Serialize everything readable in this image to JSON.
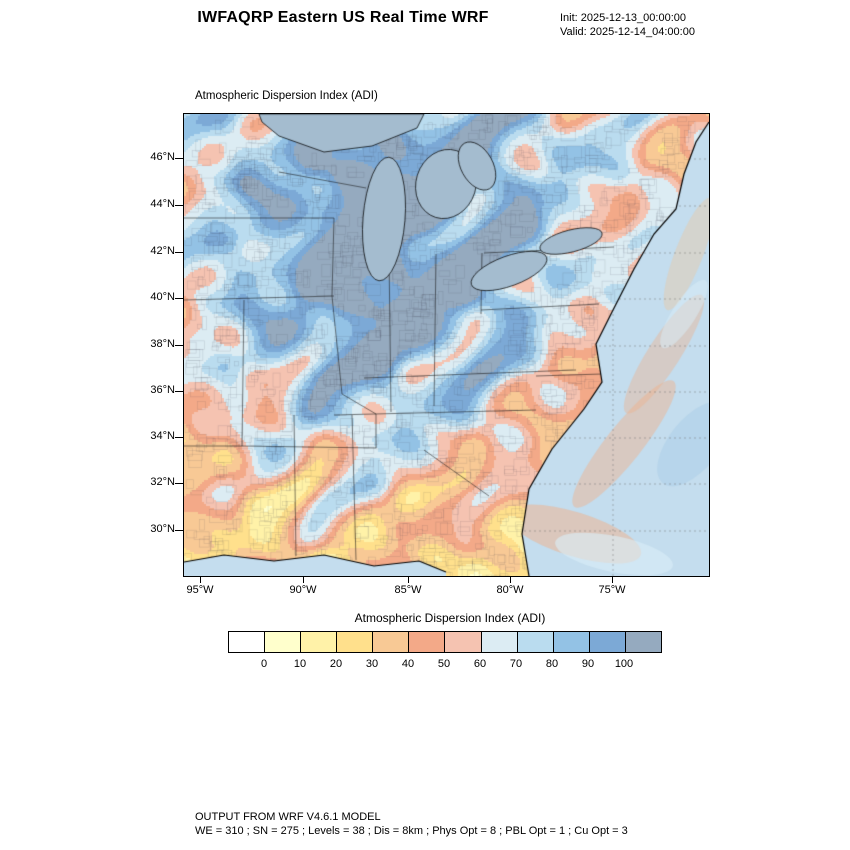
{
  "header": {
    "title": "IWFAQRP Eastern US Real Time WRF",
    "init": "Init: 2025-12-13_00:00:00",
    "valid": "Valid: 2025-12-14_04:00:00"
  },
  "map": {
    "title": "Atmospheric Dispersion Index   (ADI)",
    "lat_ticks": [
      "46°N",
      "44°N",
      "42°N",
      "40°N",
      "38°N",
      "36°N",
      "34°N",
      "32°N",
      "30°N"
    ],
    "lon_ticks": [
      "95°W",
      "90°W",
      "85°W",
      "80°W",
      "75°W"
    ],
    "ocean_color": "#c4ddee",
    "lake_color": "#a4bccf"
  },
  "colorbar": {
    "title": "Atmospheric Dispersion Index  (ADI)",
    "tick_labels": [
      "0",
      "10",
      "20",
      "30",
      "40",
      "50",
      "60",
      "70",
      "80",
      "90",
      "100"
    ],
    "cell_colors": [
      "#ffffff",
      "#ffffcc",
      "#fff2a8",
      "#ffe08c",
      "#f8c995",
      "#f3a988",
      "#f5c3b1",
      "#dcecf3",
      "#badcef",
      "#93c2e5",
      "#7ca9d6",
      "#95aabf"
    ]
  },
  "footer": {
    "line1": "OUTPUT FROM WRF V4.6.1 MODEL",
    "line2": "WE = 310 ; SN = 275 ; Levels = 38 ; Dis = 8km ; Phys Opt = 8 ; PBL Opt = 1 ; Cu Opt = 3"
  }
}
